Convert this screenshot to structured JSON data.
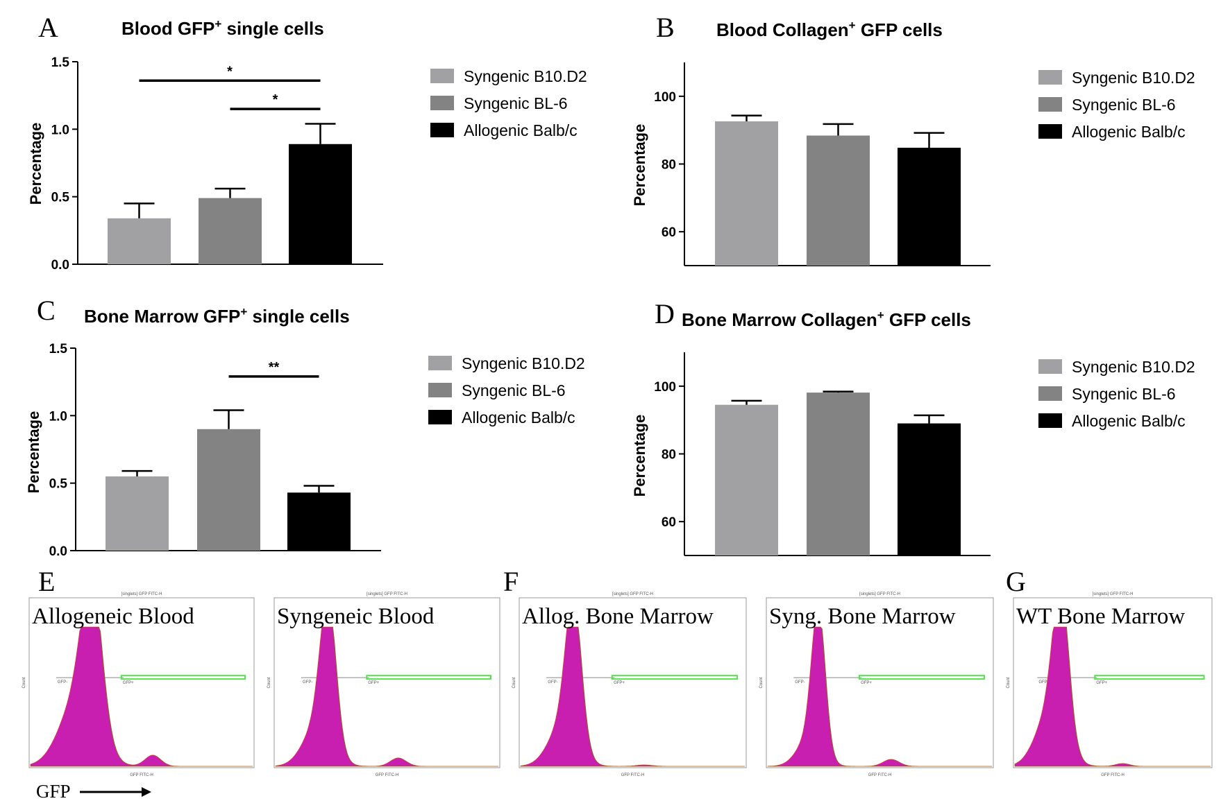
{
  "colors": {
    "syngenic_b10": "#a1a1a4",
    "syngenic_bl6": "#838383",
    "allogenic": "#000000",
    "histogram": "#c81fb0",
    "histogram_tail": "#b0580a",
    "gate_green": "#53e34b"
  },
  "chart_data": [
    {
      "panel": "A",
      "type": "bar",
      "title": "Blood GFP",
      "title_sup": "+",
      "title_rest": " single cells",
      "ylabel": "Percentage",
      "ylim": [
        0,
        1.5
      ],
      "yticks": [
        "0.0",
        "0.5",
        "1.0",
        "1.5"
      ],
      "categories": [
        "Syngenic B10.D2",
        "Syngenic BL-6",
        "Allogenic Balb/c"
      ],
      "values": [
        0.34,
        0.49,
        0.89
      ],
      "errors": [
        0.11,
        0.07,
        0.15
      ],
      "significance": [
        {
          "label": "*",
          "from": 0,
          "to": 2,
          "y": 1.36
        },
        {
          "label": "*",
          "from": 1,
          "to": 2,
          "y": 1.15
        }
      ],
      "legend": [
        "Syngenic B10.D2",
        "Syngenic BL-6",
        "Allogenic Balb/c"
      ]
    },
    {
      "panel": "B",
      "type": "bar",
      "title": "Blood Collagen",
      "title_sup": "+",
      "title_rest": " GFP cells",
      "ylabel": "Percentage",
      "ylim": [
        50,
        110
      ],
      "yticks": [
        "60",
        "80",
        "100"
      ],
      "categories": [
        "Syngenic B10.D2",
        "Syngenic BL-6",
        "Allogenic Balb/c"
      ],
      "values": [
        92.6,
        88.4,
        84.8
      ],
      "errors": [
        1.7,
        3.4,
        4.4
      ],
      "significance": [],
      "legend": [
        "Syngenic B10.D2",
        "Syngenic BL-6",
        "Allogenic Balb/c"
      ]
    },
    {
      "panel": "C",
      "type": "bar",
      "title": "Bone Marrow GFP",
      "title_sup": "+",
      "title_rest": " single cells",
      "ylabel": "Percentage",
      "ylim": [
        0,
        1.5
      ],
      "yticks": [
        "0.0",
        "0.5",
        "1.0",
        "1.5"
      ],
      "categories": [
        "Syngenic B10.D2",
        "Syngenic BL-6",
        "Allogenic Balb/c"
      ],
      "values": [
        0.55,
        0.9,
        0.43
      ],
      "errors": [
        0.04,
        0.14,
        0.05
      ],
      "significance": [
        {
          "label": "**",
          "from": 1,
          "to": 2,
          "y": 1.29
        }
      ],
      "legend": [
        "Syngenic B10.D2",
        "Syngenic BL-6",
        "Allogenic Balb/c"
      ]
    },
    {
      "panel": "D",
      "type": "bar",
      "title": "Bone Marrow Collagen",
      "title_sup": "+",
      "title_rest": " GFP cells",
      "ylabel": "Percentage",
      "ylim": [
        50,
        110
      ],
      "yticks": [
        "60",
        "80",
        "100"
      ],
      "categories": [
        "Syngenic B10.D2",
        "Syngenic BL-6",
        "Allogenic Balb/c"
      ],
      "values": [
        94.5,
        98.1,
        89.0
      ],
      "errors": [
        1.2,
        0.3,
        2.4
      ],
      "significance": [],
      "legend": [
        "Syngenic B10.D2",
        "Syngenic BL-6",
        "Allogenic Balb/c"
      ]
    }
  ],
  "histograms": {
    "header": "[singlets] GFP FITC-H",
    "xlabel": "GFP FITC-H",
    "ylabel": "Count",
    "gate_negative": "GFP-",
    "gate_positive": "GFP+",
    "plots": [
      {
        "section": "E",
        "title": "Allogeneic Blood",
        "peak": 0.28,
        "width": 0.045,
        "shoulder": 0.5,
        "tail": 0.08
      },
      {
        "section": "",
        "title": "Syngeneic Blood",
        "peak": 0.24,
        "width": 0.035,
        "shoulder": 0.3,
        "tail": 0.06
      },
      {
        "section": "F",
        "title": "Allog. Bone Marrow",
        "peak": 0.24,
        "width": 0.035,
        "shoulder": 0.3,
        "tail": 0.01
      },
      {
        "section": "",
        "title": "Syng. Bone Marrow",
        "peak": 0.23,
        "width": 0.03,
        "shoulder": 0.2,
        "tail": 0.05
      },
      {
        "section": "G",
        "title": "WT Bone Marrow",
        "peak": 0.24,
        "width": 0.04,
        "shoulder": 0.4,
        "tail": 0.02
      }
    ],
    "axis_note": "GFP"
  }
}
